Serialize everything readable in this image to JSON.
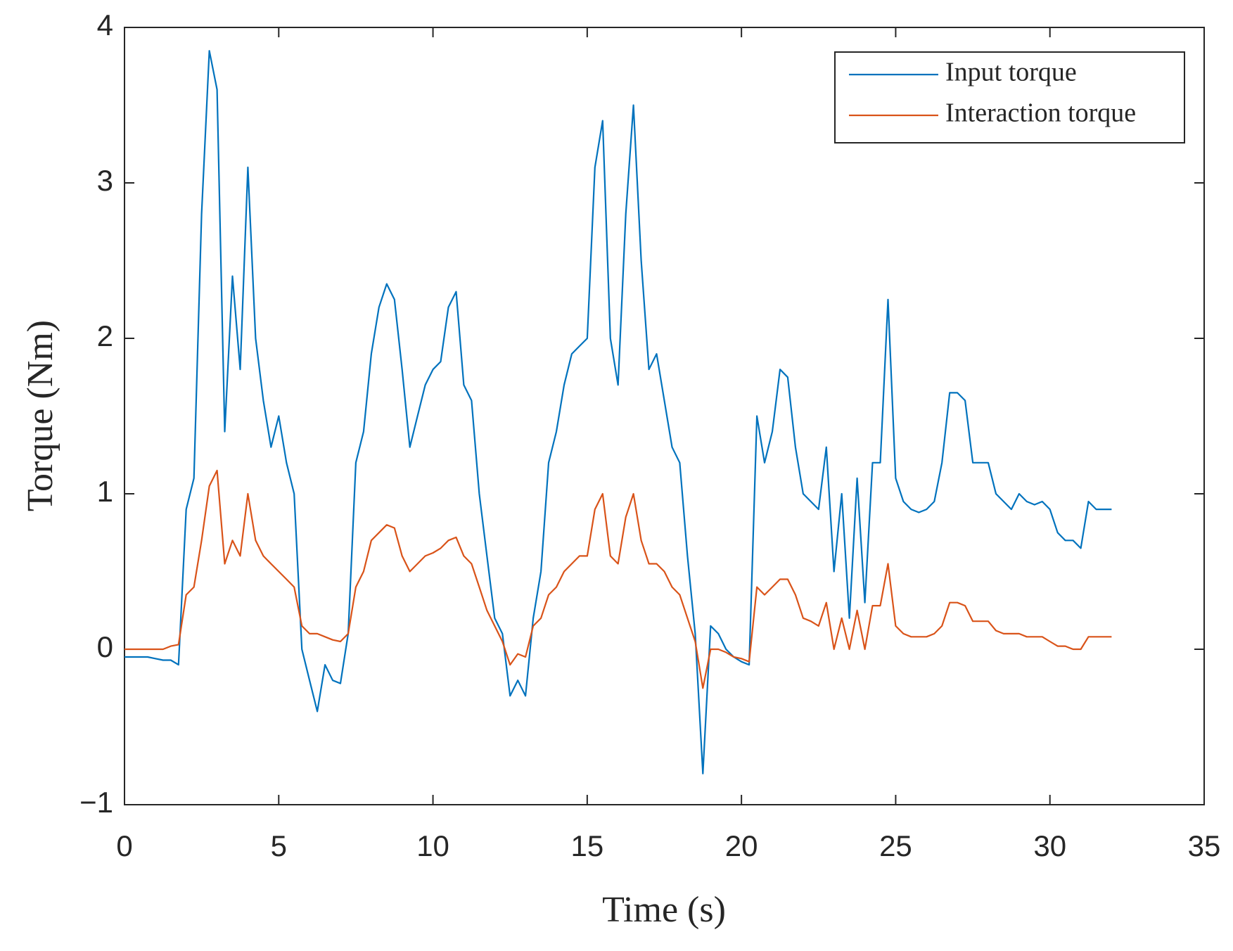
{
  "chart_data": {
    "type": "line",
    "xlabel": "Time (s)",
    "ylabel": "Torque (Nm)",
    "x": [
      0,
      0.25,
      0.5,
      0.75,
      1,
      1.25,
      1.5,
      1.75,
      2,
      2.25,
      2.5,
      2.75,
      3,
      3.25,
      3.5,
      3.75,
      4,
      4.25,
      4.5,
      4.75,
      5,
      5.25,
      5.5,
      5.75,
      6,
      6.25,
      6.5,
      6.75,
      7,
      7.25,
      7.5,
      7.75,
      8,
      8.25,
      8.5,
      8.75,
      9,
      9.25,
      9.5,
      9.75,
      10,
      10.25,
      10.5,
      10.75,
      11,
      11.25,
      11.5,
      11.75,
      12,
      12.25,
      12.5,
      12.75,
      13,
      13.25,
      13.5,
      13.75,
      14,
      14.25,
      14.5,
      14.75,
      15,
      15.25,
      15.5,
      15.75,
      16,
      16.25,
      16.5,
      16.75,
      17,
      17.25,
      17.5,
      17.75,
      18,
      18.25,
      18.5,
      18.75,
      19,
      19.25,
      19.5,
      19.75,
      20,
      20.25,
      20.5,
      20.75,
      21,
      21.25,
      21.5,
      21.75,
      22,
      22.25,
      22.5,
      22.75,
      23,
      23.25,
      23.5,
      23.75,
      24,
      24.25,
      24.5,
      24.75,
      25,
      25.25,
      25.5,
      25.75,
      26,
      26.25,
      26.5,
      26.75,
      27,
      27.25,
      27.5,
      27.75,
      28,
      28.25,
      28.5,
      28.75,
      29,
      29.25,
      29.5,
      29.75,
      30,
      30.25,
      30.5,
      30.75,
      31,
      31.25,
      31.5,
      31.75,
      32
    ],
    "series": [
      {
        "name": "Input torque",
        "color": "#0072BD",
        "values": [
          -0.05,
          -0.05,
          -0.05,
          -0.05,
          -0.06,
          -0.07,
          -0.07,
          -0.1,
          0.9,
          1.1,
          2.8,
          3.85,
          3.6,
          1.4,
          2.4,
          1.8,
          3.1,
          2.0,
          1.6,
          1.3,
          1.5,
          1.2,
          1.0,
          0.0,
          -0.2,
          -0.4,
          -0.1,
          -0.2,
          -0.22,
          0.1,
          1.2,
          1.4,
          1.9,
          2.2,
          2.35,
          2.25,
          1.8,
          1.3,
          1.5,
          1.7,
          1.8,
          1.85,
          2.2,
          2.3,
          1.7,
          1.6,
          1.0,
          0.6,
          0.2,
          0.1,
          -0.3,
          -0.2,
          -0.3,
          0.2,
          0.5,
          1.2,
          1.4,
          1.7,
          1.9,
          1.95,
          2.0,
          3.1,
          3.4,
          2.0,
          1.7,
          2.8,
          3.5,
          2.5,
          1.8,
          1.9,
          1.6,
          1.3,
          1.2,
          0.6,
          0.1,
          -0.8,
          0.15,
          0.1,
          0.0,
          -0.05,
          -0.08,
          -0.1,
          1.5,
          1.2,
          1.4,
          1.8,
          1.75,
          1.3,
          1.0,
          0.95,
          0.9,
          1.3,
          0.5,
          1.0,
          0.2,
          1.1,
          0.3,
          1.2,
          1.2,
          2.25,
          1.1,
          0.95,
          0.9,
          0.88,
          0.9,
          0.95,
          1.2,
          1.65,
          1.65,
          1.6,
          1.2,
          1.2,
          1.2,
          1.0,
          0.95,
          0.9,
          1.0,
          0.95,
          0.93,
          0.95,
          0.9,
          0.75,
          0.7,
          0.7,
          0.65,
          0.95,
          0.9,
          0.9,
          0.9
        ]
      },
      {
        "name": "Interaction torque",
        "color": "#D95319",
        "values": [
          0.0,
          0.0,
          0.0,
          0.0,
          0.0,
          0.0,
          0.02,
          0.03,
          0.35,
          0.4,
          0.7,
          1.05,
          1.15,
          0.55,
          0.7,
          0.6,
          1.0,
          0.7,
          0.6,
          0.55,
          0.5,
          0.45,
          0.4,
          0.15,
          0.1,
          0.1,
          0.08,
          0.06,
          0.05,
          0.1,
          0.4,
          0.5,
          0.7,
          0.75,
          0.8,
          0.78,
          0.6,
          0.5,
          0.55,
          0.6,
          0.62,
          0.65,
          0.7,
          0.72,
          0.6,
          0.55,
          0.4,
          0.25,
          0.15,
          0.05,
          -0.1,
          -0.03,
          -0.05,
          0.15,
          0.2,
          0.35,
          0.4,
          0.5,
          0.55,
          0.6,
          0.6,
          0.9,
          1.0,
          0.6,
          0.55,
          0.85,
          1.0,
          0.7,
          0.55,
          0.55,
          0.5,
          0.4,
          0.35,
          0.2,
          0.05,
          -0.25,
          0.0,
          0.0,
          -0.02,
          -0.05,
          -0.06,
          -0.08,
          0.4,
          0.35,
          0.4,
          0.45,
          0.45,
          0.35,
          0.2,
          0.18,
          0.15,
          0.3,
          0.0,
          0.2,
          0.0,
          0.25,
          0.0,
          0.28,
          0.28,
          0.55,
          0.15,
          0.1,
          0.08,
          0.08,
          0.08,
          0.1,
          0.15,
          0.3,
          0.3,
          0.28,
          0.18,
          0.18,
          0.18,
          0.12,
          0.1,
          0.1,
          0.1,
          0.08,
          0.08,
          0.08,
          0.05,
          0.02,
          0.02,
          0.0,
          0.0,
          0.08,
          0.08,
          0.08,
          0.08
        ]
      }
    ],
    "xlim": [
      0,
      35
    ],
    "xticks": [
      0,
      5,
      10,
      15,
      20,
      25,
      30,
      35
    ],
    "ylim": [
      -1,
      4
    ],
    "yticks": [
      {
        "value": -1,
        "label": "−1"
      },
      0,
      1,
      2,
      3,
      4
    ],
    "grid": false,
    "legend": "upper right"
  }
}
